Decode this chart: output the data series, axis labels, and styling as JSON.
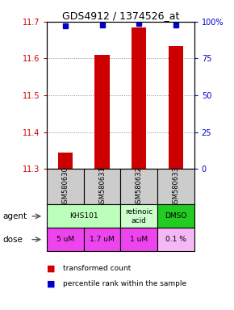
{
  "title": "GDS4912 / 1374526_at",
  "samples": [
    "GSM580630",
    "GSM580631",
    "GSM580632",
    "GSM580633"
  ],
  "red_values": [
    11.345,
    11.61,
    11.685,
    11.635
  ],
  "blue_values": [
    97,
    98,
    99,
    98
  ],
  "ylim_left": [
    11.3,
    11.7
  ],
  "ylim_right": [
    0,
    100
  ],
  "yticks_left": [
    11.3,
    11.4,
    11.5,
    11.6,
    11.7
  ],
  "yticks_right": [
    0,
    25,
    50,
    75,
    100
  ],
  "ytick_labels_right": [
    "0",
    "25",
    "50",
    "75",
    "100%"
  ],
  "agent_groups": [
    {
      "label": "KHS101",
      "start": 0,
      "end": 1,
      "color": "#bbffbb"
    },
    {
      "label": "retinoic\nacid",
      "start": 2,
      "end": 2,
      "color": "#ccffcc"
    },
    {
      "label": "DMSO",
      "start": 3,
      "end": 3,
      "color": "#22cc22"
    }
  ],
  "doses": [
    "5 uM",
    "1.7 uM",
    "1 uM",
    "0.1 %"
  ],
  "dose_colors": [
    "#ee44ee",
    "#ee44ee",
    "#ee44ee",
    "#f4b8f4"
  ],
  "bar_color": "#cc0000",
  "dot_color": "#0000cc",
  "grid_color": "#888888",
  "sample_box_color": "#cccccc",
  "left_tick_color": "#cc0000",
  "right_tick_color": "#0000cc",
  "figsize": [
    2.9,
    3.84
  ],
  "dpi": 100
}
